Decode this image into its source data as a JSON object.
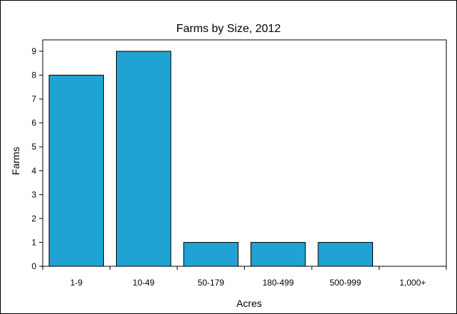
{
  "chart_data": {
    "type": "bar",
    "title": "Farms by Size, 2012",
    "xlabel": "Acres",
    "ylabel": "Farms",
    "categories": [
      "1-9",
      "10-49",
      "50-179",
      "180-499",
      "500-999",
      "1,000+"
    ],
    "values": [
      8,
      9,
      1,
      1,
      1,
      0
    ],
    "ylim": [
      0,
      9
    ],
    "yticks": [
      0,
      1,
      2,
      3,
      4,
      5,
      6,
      7,
      8,
      9
    ],
    "grid": false,
    "legend": "none",
    "bar_color": "#1FA2D4",
    "bar_border_color": "#000000"
  }
}
